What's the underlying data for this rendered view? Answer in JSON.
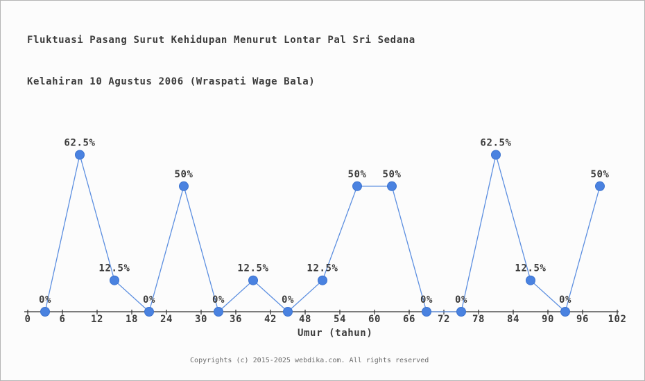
{
  "window": {
    "background": "#fcfcfc",
    "border_color": "#b4b4b4"
  },
  "chart_data": {
    "type": "line",
    "title": "Fluktuasi Pasang Surut Kehidupan Menurut Lontar Pal Sri Sedana Kelahiran 10 Agustus 2006 (Wraspati Wage Bala)",
    "title_lines": [
      "Fluktuasi Pasang Surut Kehidupan Menurut Lontar Pal Sri Sedana",
      "Kelahiran 10 Agustus 2006 (Wraspati Wage Bala)"
    ],
    "xlabel": "Umur (tahun)",
    "ylabel": "",
    "x": [
      3,
      9,
      15,
      21,
      27,
      33,
      39,
      45,
      51,
      57,
      63,
      69,
      75,
      81,
      87,
      93,
      99
    ],
    "values": [
      0,
      62.5,
      12.5,
      0,
      50,
      0,
      12.5,
      0,
      12.5,
      50,
      50,
      0,
      0,
      62.5,
      12.5,
      0,
      50
    ],
    "point_labels": [
      "0%",
      "62.5%",
      "12.5%",
      "0%",
      "50%",
      "0%",
      "12.5%",
      "0%",
      "12.5%",
      "50%",
      "50%",
      "0%",
      "0%",
      "62.5%",
      "12.5%",
      "0%",
      "50%"
    ],
    "x_ticks": [
      0,
      6,
      12,
      18,
      24,
      30,
      36,
      42,
      48,
      54,
      60,
      66,
      72,
      78,
      84,
      90,
      96,
      102
    ],
    "xlim": [
      0,
      102
    ],
    "ylim": [
      0,
      62.5
    ],
    "grid": false,
    "legend": false,
    "line_color": "#5b8ee0",
    "marker_color": "#4a82e0",
    "marker_stroke_color": "#3a72cf",
    "axis_color": "#2f2f2f",
    "text_color": "#3c3c3c"
  },
  "footer": {
    "copyright": "Copyrights (c) 2015-2025 webdika.com. All rights reserved"
  }
}
